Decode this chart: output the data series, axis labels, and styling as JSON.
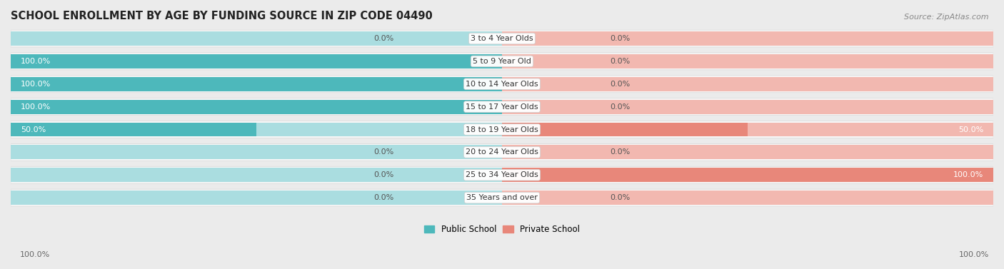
{
  "title": "SCHOOL ENROLLMENT BY AGE BY FUNDING SOURCE IN ZIP CODE 04490",
  "source": "Source: ZipAtlas.com",
  "categories": [
    "3 to 4 Year Olds",
    "5 to 9 Year Old",
    "10 to 14 Year Olds",
    "15 to 17 Year Olds",
    "18 to 19 Year Olds",
    "20 to 24 Year Olds",
    "25 to 34 Year Olds",
    "35 Years and over"
  ],
  "public_values": [
    0.0,
    100.0,
    100.0,
    100.0,
    50.0,
    0.0,
    0.0,
    0.0
  ],
  "private_values": [
    0.0,
    0.0,
    0.0,
    0.0,
    50.0,
    0.0,
    100.0,
    0.0
  ],
  "public_color": "#4db8bb",
  "private_color": "#e8877a",
  "public_color_light": "#aadde0",
  "private_color_light": "#f2b8b0",
  "bar_height": 0.62,
  "background_color": "#ebebeb",
  "row_bg_color": "#f7f7f7",
  "title_fontsize": 10.5,
  "label_fontsize": 8,
  "source_fontsize": 8,
  "cat_fontsize": 8
}
